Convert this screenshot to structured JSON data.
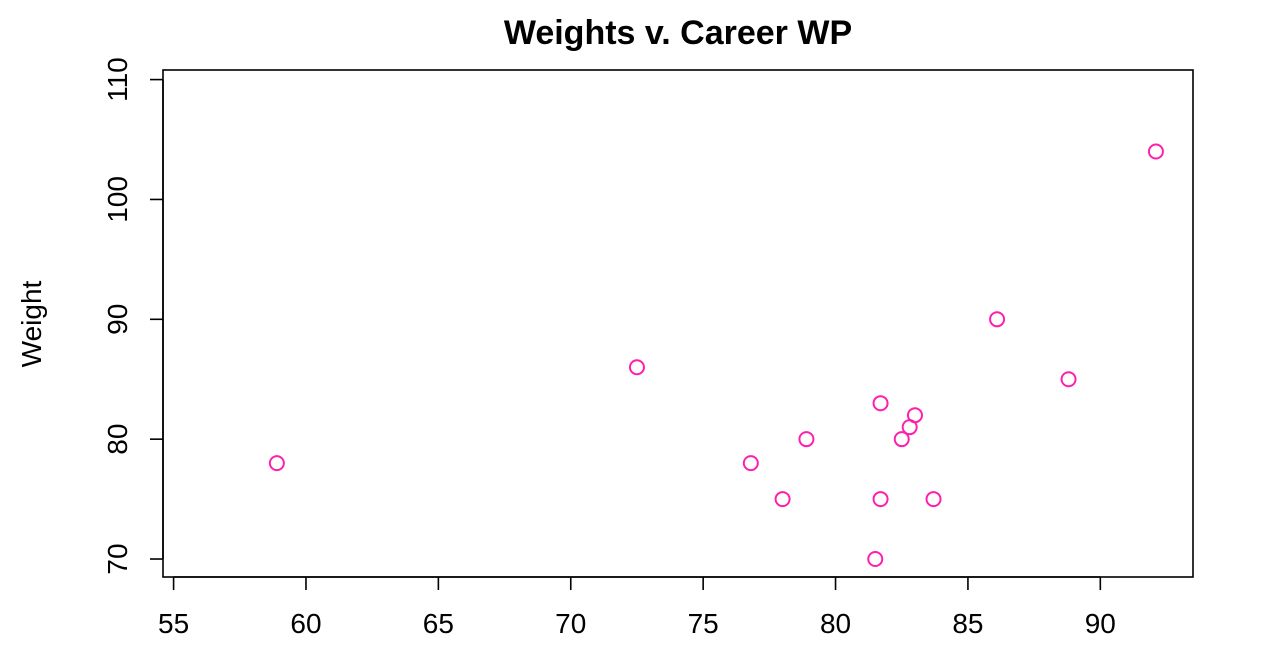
{
  "chart_data": {
    "type": "scatter",
    "title": "Weights v. Career WP",
    "xlabel": "",
    "ylabel": "Weight",
    "xlim": [
      54.6,
      93.5
    ],
    "ylim": [
      68.5,
      110.8
    ],
    "xticks": [
      55,
      60,
      65,
      70,
      75,
      80,
      85,
      90
    ],
    "yticks": [
      70,
      80,
      90,
      100,
      110
    ],
    "grid": false,
    "point_color": "#ff1fae",
    "marker": "open-circle",
    "points": [
      {
        "x": 58.9,
        "y": 78
      },
      {
        "x": 72.5,
        "y": 86
      },
      {
        "x": 76.8,
        "y": 78
      },
      {
        "x": 78.0,
        "y": 75
      },
      {
        "x": 78.9,
        "y": 80
      },
      {
        "x": 81.5,
        "y": 70
      },
      {
        "x": 81.7,
        "y": 83
      },
      {
        "x": 81.7,
        "y": 75
      },
      {
        "x": 82.5,
        "y": 80
      },
      {
        "x": 82.8,
        "y": 81
      },
      {
        "x": 83.0,
        "y": 82
      },
      {
        "x": 83.7,
        "y": 75
      },
      {
        "x": 86.1,
        "y": 90
      },
      {
        "x": 88.8,
        "y": 85
      },
      {
        "x": 92.1,
        "y": 104
      }
    ]
  }
}
